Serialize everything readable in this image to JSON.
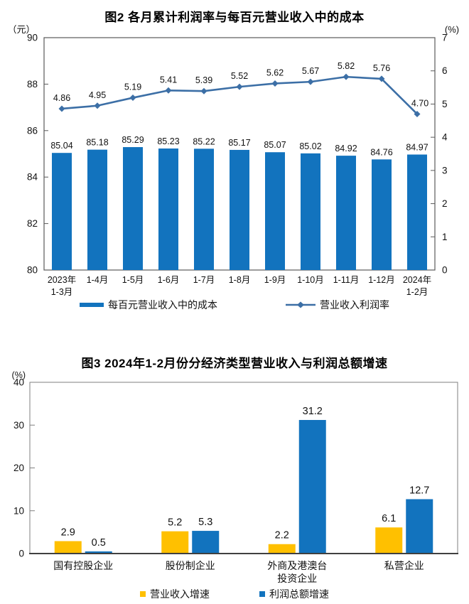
{
  "chart_data": [
    {
      "id": "chart2",
      "type": "combo-bar-line",
      "title": "图2 各月累计利润率与每百元营业收入中的成本",
      "left_axis": {
        "unit": "（元）",
        "min": 80,
        "max": 90,
        "step": 2,
        "ticks": [
          90,
          88,
          86,
          84,
          82,
          80
        ]
      },
      "right_axis": {
        "unit": "(%)",
        "min": 0,
        "max": 7,
        "step": 1,
        "ticks": [
          7,
          6,
          5,
          4,
          3,
          2,
          1,
          0
        ]
      },
      "categories": [
        [
          "2023年",
          "1-3月"
        ],
        [
          "1-4月"
        ],
        [
          "1-5月"
        ],
        [
          "1-6月"
        ],
        [
          "1-7月"
        ],
        [
          "1-8月"
        ],
        [
          "1-9月"
        ],
        [
          "1-10月"
        ],
        [
          "1-11月"
        ],
        [
          "1-12月"
        ],
        [
          "2024年",
          "1-2月"
        ]
      ],
      "bar_series": {
        "name": "每百元营业收入中的成本",
        "color": "#1273BE",
        "axis": "left",
        "value_decimals": 2,
        "values": [
          85.04,
          85.18,
          85.29,
          85.23,
          85.22,
          85.17,
          85.07,
          85.02,
          84.92,
          84.76,
          84.97
        ]
      },
      "line_series": {
        "name": "营业收入利润率",
        "color": "#3C6FA6",
        "axis": "right",
        "marker": "diamond",
        "value_decimals": 2,
        "values": [
          4.86,
          4.95,
          5.19,
          5.41,
          5.39,
          5.52,
          5.62,
          5.67,
          5.82,
          5.76,
          4.7
        ]
      }
    },
    {
      "id": "chart3",
      "type": "grouped-bar",
      "title": "图3 2024年1-2月份分经济类型营业收入与利润总额增速",
      "left_axis": {
        "unit": "(%)",
        "min": 0,
        "max": 40,
        "step": 10,
        "ticks": [
          40,
          30,
          20,
          10,
          0
        ]
      },
      "categories": [
        [
          "国有控股企业"
        ],
        [
          "股份制企业"
        ],
        [
          "外商及港澳台",
          "投资企业"
        ],
        [
          "私营企业"
        ]
      ],
      "series": [
        {
          "name": "营业收入增速",
          "color": "#FFC000",
          "value_decimals": 1,
          "values": [
            2.9,
            5.2,
            2.2,
            6.1
          ]
        },
        {
          "name": "利润总额增速",
          "color": "#1273BE",
          "value_decimals": 1,
          "values": [
            0.5,
            5.3,
            31.2,
            12.7
          ]
        }
      ]
    }
  ],
  "style": {
    "plot_border_color": "#595959",
    "axis_line_color": "#404040",
    "label_color": "#1a1a1a"
  }
}
